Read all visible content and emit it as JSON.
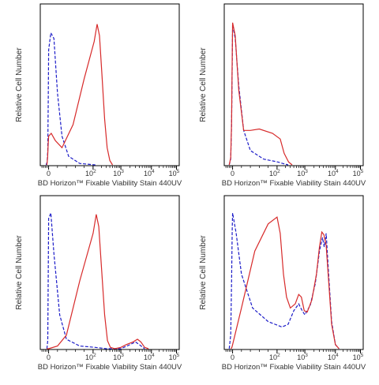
{
  "chart_data": [
    {
      "type": "line",
      "panel": "top-left",
      "xlabel": "BD Horizon™ Fixable Viability Stain 440UV",
      "ylabel": "Relative Cell Number",
      "x_scale": "biexponential",
      "x_ticks": [
        "0",
        "10^2",
        "10^3",
        "10^4",
        "10^5"
      ],
      "xlim": [
        -10,
        100000
      ],
      "ylim": [
        0,
        1.0
      ],
      "legend": "none",
      "series": [
        {
          "style": "dashed",
          "color": "#1c1cc8",
          "points": [
            [
              -30,
              0.0
            ],
            [
              -18,
              0.02
            ],
            [
              -10,
              0.1
            ],
            [
              -4,
              0.45
            ],
            [
              0,
              0.8
            ],
            [
              5,
              0.92
            ],
            [
              12,
              0.88
            ],
            [
              20,
              0.5
            ],
            [
              30,
              0.2
            ],
            [
              45,
              0.06
            ],
            [
              70,
              0.01
            ],
            [
              120,
              0.0
            ]
          ]
        },
        {
          "style": "solid",
          "color": "#d72a2a",
          "points": [
            [
              -20,
              0.0
            ],
            [
              -12,
              0.05
            ],
            [
              -5,
              0.14
            ],
            [
              0,
              0.2
            ],
            [
              6,
              0.22
            ],
            [
              15,
              0.17
            ],
            [
              30,
              0.12
            ],
            [
              55,
              0.28
            ],
            [
              80,
              0.6
            ],
            [
              110,
              0.86
            ],
            [
              140,
              0.98
            ],
            [
              170,
              0.9
            ],
            [
              210,
              0.62
            ],
            [
              260,
              0.32
            ],
            [
              320,
              0.12
            ],
            [
              400,
              0.03
            ],
            [
              500,
              0.0
            ]
          ]
        }
      ]
    },
    {
      "type": "line",
      "panel": "top-right",
      "xlabel": "BD Horizon™ Fixable Viability Stain 440UV",
      "ylabel": "Relative Cell Number",
      "x_scale": "biexponential",
      "x_ticks": [
        "0",
        "10^2",
        "10^3",
        "10^4",
        "10^5"
      ],
      "xlim": [
        -10,
        100000
      ],
      "ylim": [
        0,
        1.0
      ],
      "legend": "none",
      "series": [
        {
          "style": "dashed",
          "color": "#1c1cc8",
          "points": [
            [
              -40,
              0.0
            ],
            [
              -22,
              0.04
            ],
            [
              -12,
              0.28
            ],
            [
              -4,
              0.7
            ],
            [
              0,
              0.98
            ],
            [
              6,
              0.88
            ],
            [
              14,
              0.55
            ],
            [
              25,
              0.24
            ],
            [
              40,
              0.1
            ],
            [
              70,
              0.04
            ],
            [
              110,
              0.02
            ],
            [
              160,
              0.01
            ],
            [
              250,
              0.0
            ]
          ]
        },
        {
          "style": "solid",
          "color": "#d72a2a",
          "points": [
            [
              -40,
              0.0
            ],
            [
              -22,
              0.05
            ],
            [
              -12,
              0.3
            ],
            [
              -4,
              0.75
            ],
            [
              0,
              0.99
            ],
            [
              6,
              0.9
            ],
            [
              14,
              0.52
            ],
            [
              25,
              0.24
            ],
            [
              40,
              0.24
            ],
            [
              60,
              0.25
            ],
            [
              90,
              0.22
            ],
            [
              130,
              0.18
            ],
            [
              180,
              0.08
            ],
            [
              260,
              0.02
            ],
            [
              350,
              0.0
            ]
          ]
        }
      ]
    },
    {
      "type": "line",
      "panel": "bottom-left",
      "xlabel": "BD Horizon™ Fixable Viability Stain 440UV",
      "ylabel": "Relative Cell Number",
      "x_scale": "biexponential",
      "x_ticks": [
        "0",
        "10^2",
        "10^3",
        "10^4",
        "10^5"
      ],
      "xlim": [
        -10,
        100000
      ],
      "ylim": [
        0,
        1.0
      ],
      "legend": "none",
      "series": [
        {
          "style": "dashed",
          "color": "#1c1cc8",
          "points": [
            [
              -20,
              0.0
            ],
            [
              -10,
              0.06
            ],
            [
              -4,
              0.55
            ],
            [
              0,
              0.96
            ],
            [
              5,
              1.0
            ],
            [
              12,
              0.7
            ],
            [
              25,
              0.25
            ],
            [
              40,
              0.07
            ],
            [
              70,
              0.02
            ],
            [
              120,
              0.01
            ],
            [
              300,
              0.0
            ],
            [
              1000,
              0.0
            ],
            [
              2000,
              0.03
            ],
            [
              3000,
              0.05
            ],
            [
              4000,
              0.03
            ],
            [
              6000,
              0.0
            ]
          ]
        },
        {
          "style": "solid",
          "color": "#d72a2a",
          "points": [
            [
              -20,
              0.0
            ],
            [
              0,
              0.0
            ],
            [
              20,
              0.02
            ],
            [
              40,
              0.1
            ],
            [
              70,
              0.5
            ],
            [
              100,
              0.85
            ],
            [
              130,
              0.99
            ],
            [
              160,
              0.9
            ],
            [
              200,
              0.6
            ],
            [
              260,
              0.25
            ],
            [
              330,
              0.06
            ],
            [
              420,
              0.01
            ],
            [
              600,
              0.0
            ],
            [
              1000,
              0.01
            ],
            [
              1500,
              0.03
            ],
            [
              2500,
              0.05
            ],
            [
              3500,
              0.07
            ],
            [
              4500,
              0.05
            ],
            [
              6000,
              0.01
            ],
            [
              8000,
              0.0
            ]
          ]
        }
      ]
    },
    {
      "type": "line",
      "panel": "bottom-right",
      "xlabel": "BD Horizon™ Fixable Viability Stain 440UV",
      "ylabel": "Relative Cell Number",
      "x_scale": "biexponential",
      "x_ticks": [
        "0",
        "10^2",
        "10^3",
        "10^4",
        "10^5"
      ],
      "xlim": [
        -10,
        100000
      ],
      "ylim": [
        0,
        1.0
      ],
      "legend": "none",
      "series": [
        {
          "style": "dashed",
          "color": "#1c1cc8",
          "points": [
            [
              -40,
              0.0
            ],
            [
              -22,
              0.1
            ],
            [
              -12,
              0.5
            ],
            [
              -4,
              0.88
            ],
            [
              0,
              1.0
            ],
            [
              8,
              0.85
            ],
            [
              20,
              0.55
            ],
            [
              45,
              0.3
            ],
            [
              80,
              0.2
            ],
            [
              150,
              0.16
            ],
            [
              250,
              0.18
            ],
            [
              400,
              0.28
            ],
            [
              600,
              0.33
            ],
            [
              800,
              0.28
            ],
            [
              1000,
              0.25
            ],
            [
              1500,
              0.32
            ],
            [
              2200,
              0.48
            ],
            [
              3000,
              0.72
            ],
            [
              3800,
              0.82
            ],
            [
              4300,
              0.75
            ],
            [
              5000,
              0.85
            ],
            [
              6000,
              0.55
            ],
            [
              7500,
              0.2
            ],
            [
              10000,
              0.03
            ],
            [
              14000,
              0.0
            ]
          ]
        },
        {
          "style": "solid",
          "color": "#d72a2a",
          "points": [
            [
              -20,
              0.0
            ],
            [
              -8,
              0.01
            ],
            [
              0,
              0.03
            ],
            [
              20,
              0.3
            ],
            [
              50,
              0.72
            ],
            [
              80,
              0.92
            ],
            [
              100,
              0.97
            ],
            [
              130,
              0.85
            ],
            [
              170,
              0.55
            ],
            [
              220,
              0.38
            ],
            [
              300,
              0.3
            ],
            [
              450,
              0.33
            ],
            [
              600,
              0.4
            ],
            [
              750,
              0.38
            ],
            [
              950,
              0.28
            ],
            [
              1200,
              0.27
            ],
            [
              1700,
              0.36
            ],
            [
              2400,
              0.55
            ],
            [
              3000,
              0.75
            ],
            [
              3600,
              0.86
            ],
            [
              4200,
              0.84
            ],
            [
              5000,
              0.76
            ],
            [
              6000,
              0.5
            ],
            [
              7500,
              0.18
            ],
            [
              10000,
              0.03
            ],
            [
              14000,
              0.0
            ]
          ]
        }
      ]
    }
  ]
}
